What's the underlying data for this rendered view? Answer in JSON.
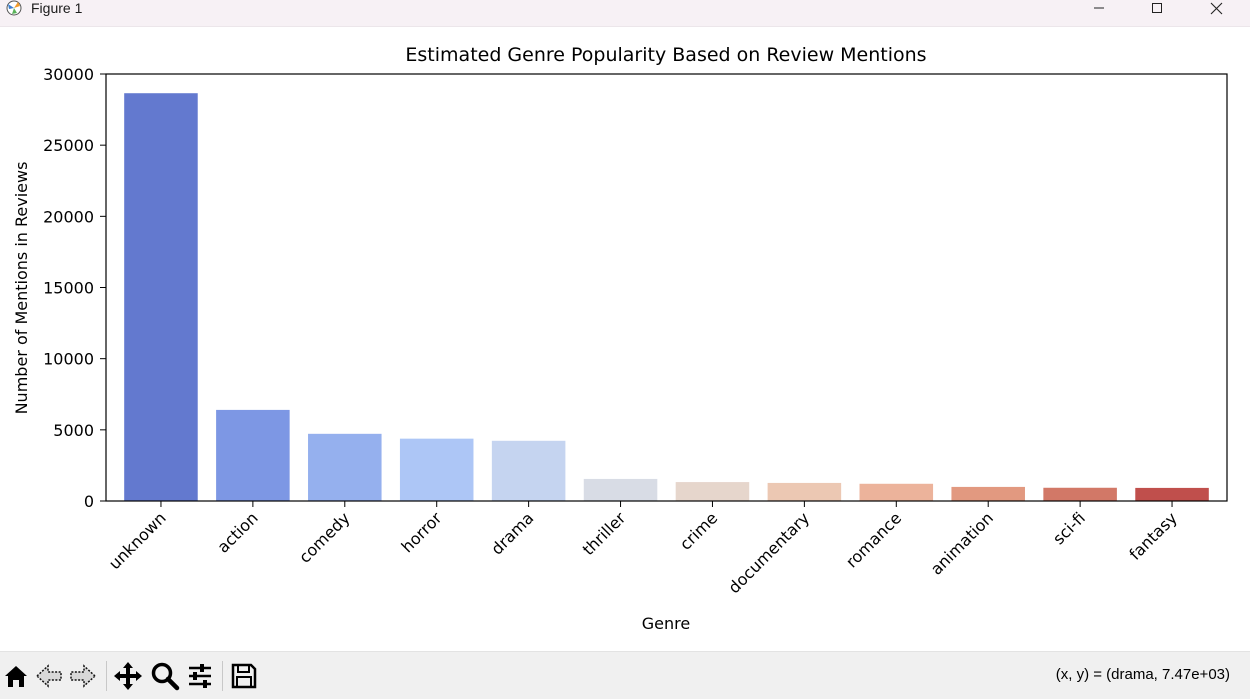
{
  "window": {
    "title": "Figure 1",
    "icons": {
      "app": "matplotlib-icon",
      "minimize": "minimize-icon",
      "maximize": "maximize-icon",
      "close": "close-icon"
    }
  },
  "toolbar": {
    "icons": [
      "home-icon",
      "back-arrow-icon",
      "forward-arrow-icon",
      "pan-icon",
      "zoom-icon",
      "configure-subplots-icon",
      "save-icon"
    ],
    "coordinates": "(x, y) = (drama, 7.47e+03)"
  },
  "chart_data": {
    "type": "bar",
    "title": "Estimated Genre Popularity Based on Review Mentions",
    "xlabel": "Genre",
    "ylabel": "Number of Mentions in Reviews",
    "categories": [
      "unknown",
      "action",
      "comedy",
      "horror",
      "drama",
      "thriller",
      "crime",
      "documentary",
      "romance",
      "animation",
      "sci-fi",
      "fantasy"
    ],
    "values": [
      28650,
      6400,
      4720,
      4380,
      4230,
      1550,
      1330,
      1270,
      1210,
      990,
      930,
      920
    ],
    "colors": [
      "#6379cf",
      "#7d97e4",
      "#95b0ee",
      "#adc6f6",
      "#c5d4f0",
      "#d8dce5",
      "#e6d6cc",
      "#ecc8b3",
      "#ecb39b",
      "#e29980",
      "#d27867",
      "#c04f4c"
    ],
    "ylim": [
      0,
      30000
    ],
    "yticks": [
      0,
      5000,
      10000,
      15000,
      20000,
      25000,
      30000
    ],
    "xtick_rotation": -45,
    "grid": false,
    "legend": "none"
  }
}
